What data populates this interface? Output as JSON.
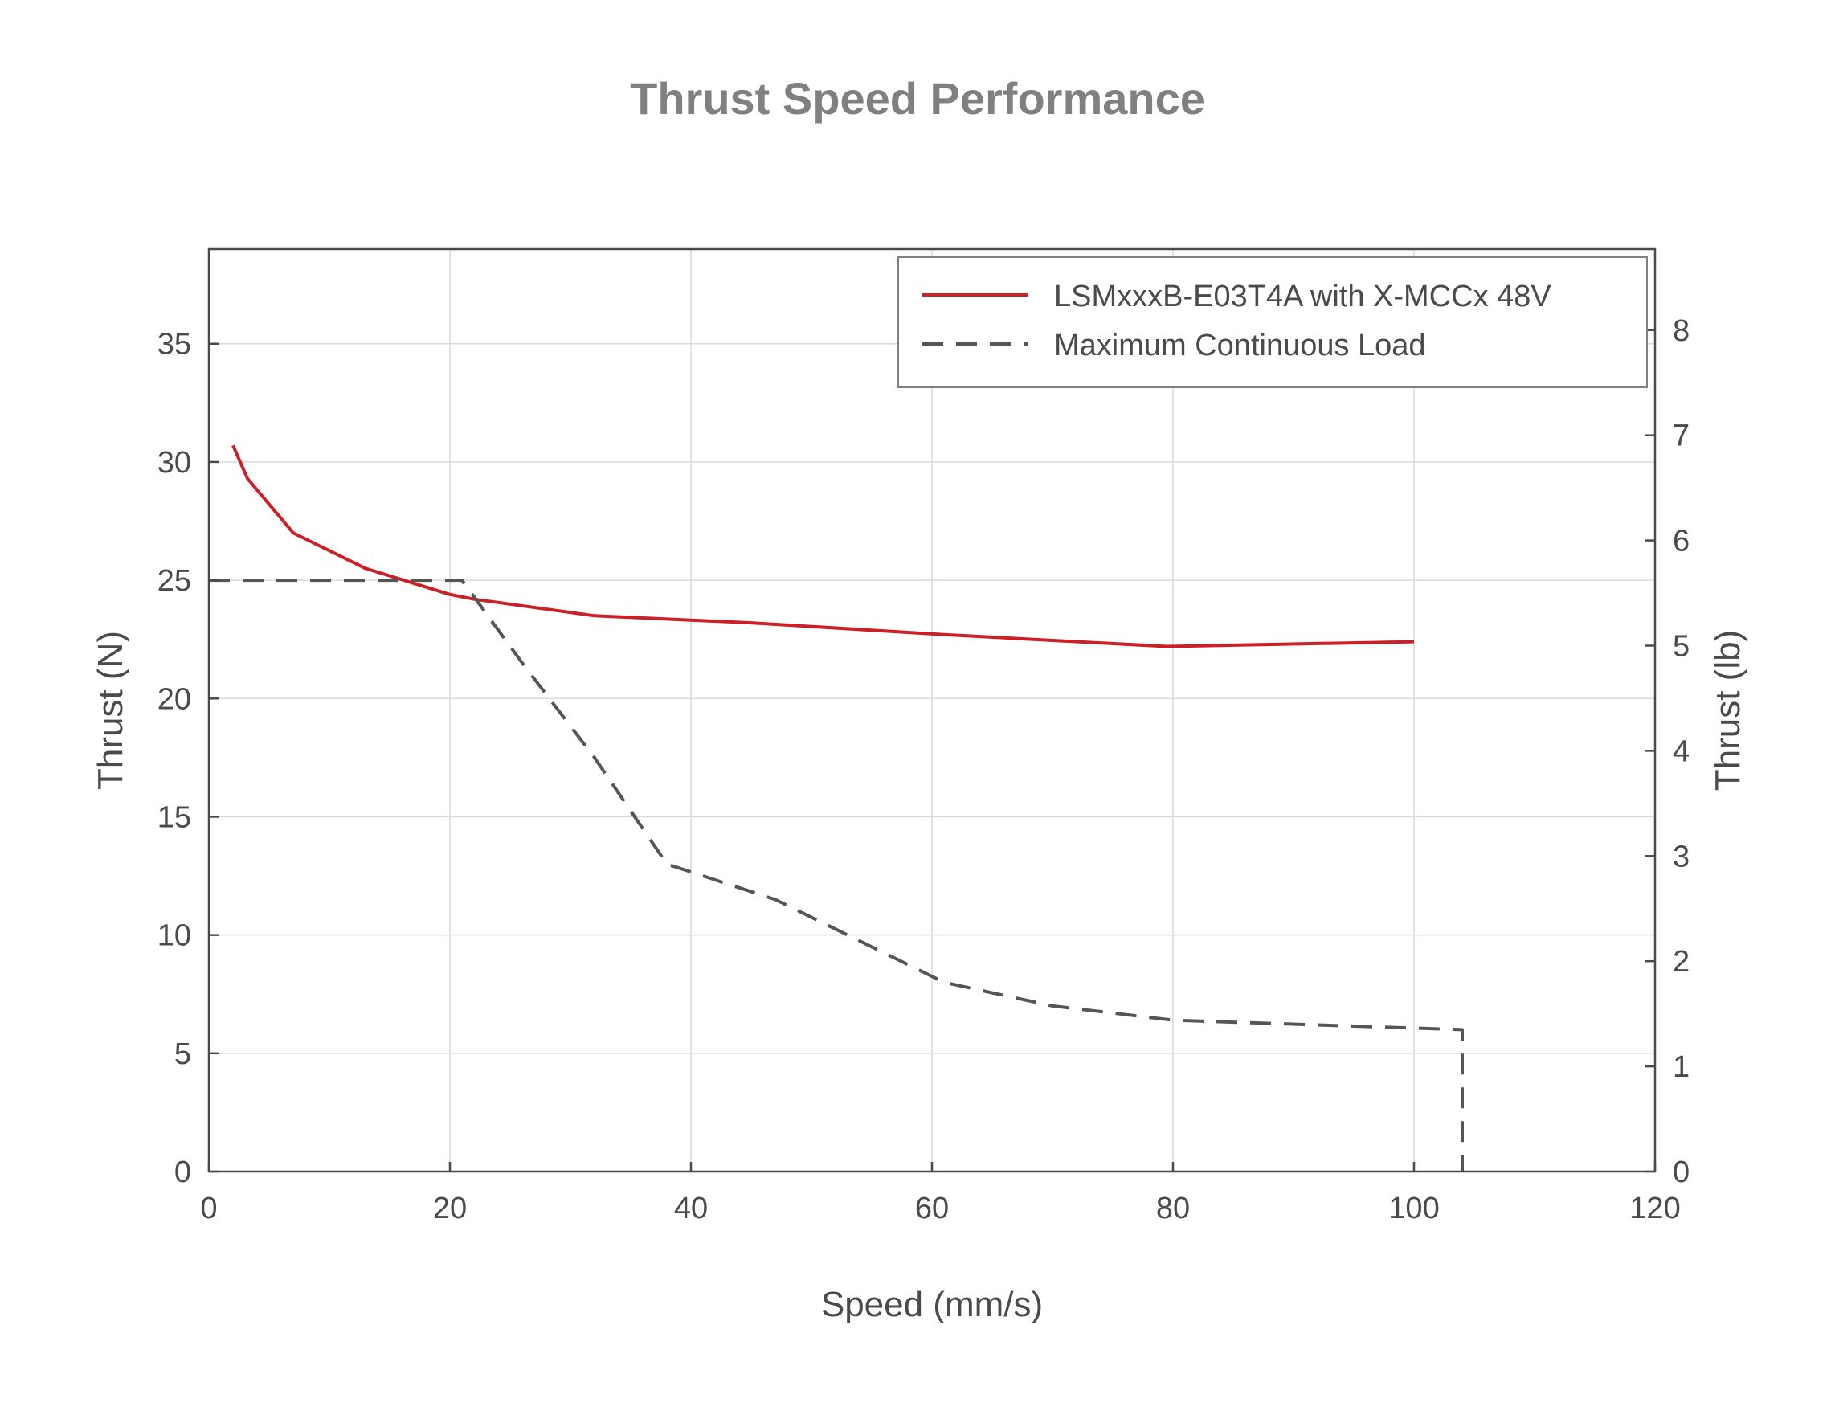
{
  "chart_data": {
    "type": "line",
    "title": "Thrust Speed Performance",
    "xlabel": "Speed (mm/s)",
    "ylabel": "Thrust (N)",
    "y2label": "Thrust (lb)",
    "xlim": [
      0,
      120
    ],
    "ylim": [
      0,
      39
    ],
    "y2lim": [
      0,
      8.77
    ],
    "xticks": [
      0,
      20,
      40,
      60,
      80,
      100,
      120
    ],
    "yticks": [
      0,
      5,
      10,
      15,
      20,
      25,
      30,
      35
    ],
    "y2ticks": [
      0,
      1,
      2,
      3,
      4,
      5,
      6,
      7,
      8
    ],
    "grid": true,
    "legend_position": "top-right",
    "series": [
      {
        "name": "LSMxxxB-E03T4A with X-MCCx 48V",
        "color": "#cc1f26",
        "style": "solid",
        "x": [
          2,
          3.2,
          7,
          13,
          20,
          22,
          32,
          45,
          61,
          79.5,
          100
        ],
        "y": [
          30.7,
          29.3,
          27.0,
          25.5,
          24.4,
          24.2,
          23.5,
          23.2,
          22.7,
          22.2,
          22.4
        ]
      },
      {
        "name": "Maximum Continuous Load",
        "color": "#555555",
        "style": "dashed",
        "x": [
          0,
          21,
          26,
          32,
          38,
          47,
          61,
          70,
          80,
          104,
          104
        ],
        "y": [
          25,
          25,
          21.5,
          17.5,
          13,
          11.5,
          8,
          7,
          6.4,
          6,
          0
        ]
      }
    ]
  }
}
